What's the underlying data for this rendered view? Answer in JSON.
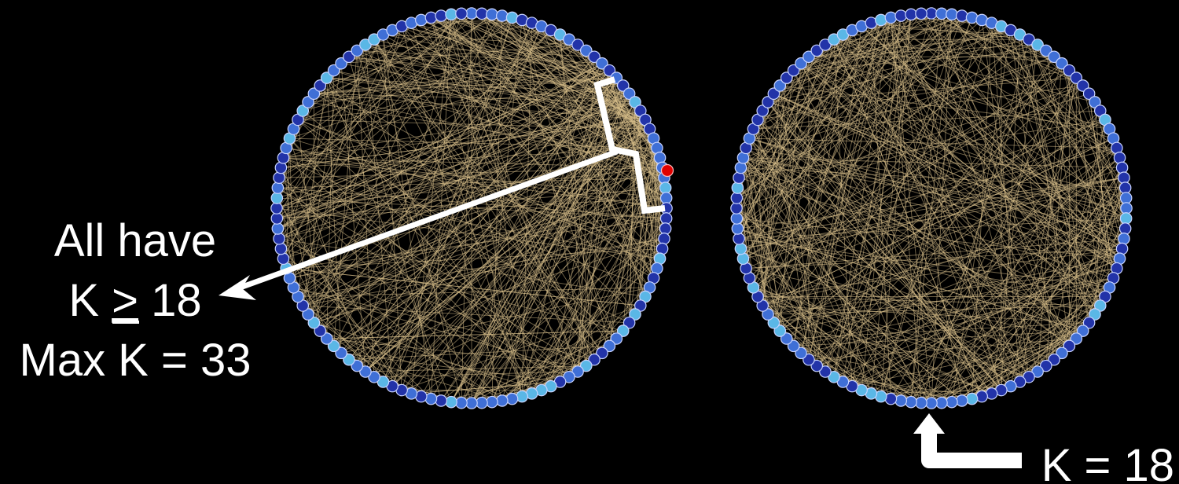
{
  "left_network": {
    "annotation": {
      "line1": "All have",
      "line2_prefix": "K ",
      "line2_symbol": ">",
      "line2_suffix": " 18",
      "line3": "Max K = 33"
    }
  },
  "right_network": {
    "annotation": {
      "label": "K = 18"
    }
  },
  "colors": {
    "background": "#000000",
    "edge": "#d9c08a",
    "node_dark": "#2233a8",
    "node_mid": "#3f6fd6",
    "node_light": "#5ab7e6",
    "highlight_node": "#e00000",
    "annotation": "#ffffff"
  }
}
